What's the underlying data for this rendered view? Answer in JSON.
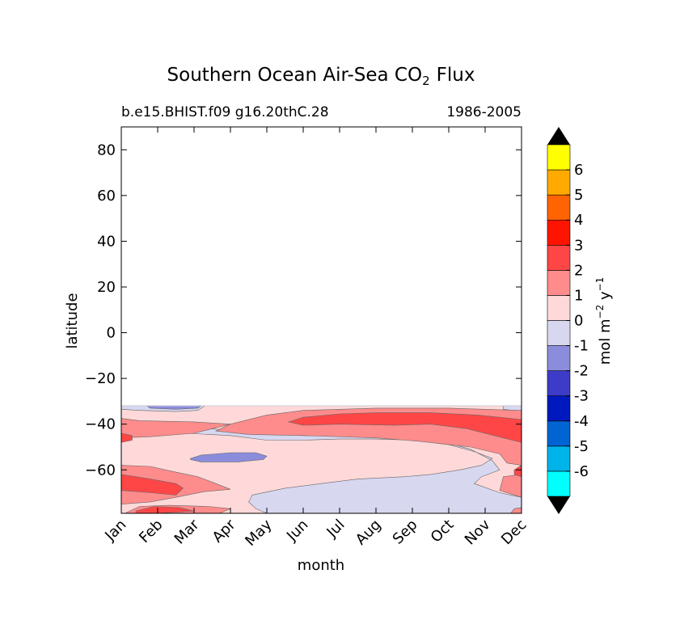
{
  "chart_data": {
    "type": "contourf",
    "title_prefix": "Southern Ocean Air-Sea CO",
    "title_subscript": "2",
    "title_suffix": "Flux",
    "subtitle_left": "b.e15.BHIST.f09 g16.20thC.28",
    "subtitle_right": "1986-2005",
    "xlabel": "month",
    "ylabel": "latitude",
    "x_ticks": [
      "Jan",
      "Feb",
      "Mar",
      "Apr",
      "May",
      "Jun",
      "Jul",
      "Aug",
      "Sep",
      "Oct",
      "Nov",
      "Dec"
    ],
    "y_ticks": [
      80,
      60,
      40,
      20,
      0,
      -20,
      -40,
      -60
    ],
    "y_tick_labels": [
      "80",
      "60",
      "40",
      "20",
      "0",
      "−20",
      "−40",
      "−60"
    ],
    "xlim": [
      0,
      11
    ],
    "ylim": [
      -79,
      90
    ],
    "data_lat_max": -32,
    "colorbar": {
      "label_prefix": "mol m",
      "label_exp1": "−2",
      "label_mid": " y",
      "label_exp2": "−1",
      "levels": [
        -7,
        -6,
        -5,
        -4,
        -3,
        -2,
        -1,
        0,
        1,
        2,
        3,
        4,
        5,
        6,
        7
      ],
      "tick_values": [
        -6,
        -5,
        -4,
        -3,
        -2,
        -1,
        0,
        1,
        2,
        3,
        4,
        5,
        6
      ],
      "tick_labels": [
        "-6",
        "-5",
        "-4",
        "-3",
        "-2",
        "-1",
        "0",
        "1",
        "2",
        "3",
        "4",
        "5",
        "6"
      ],
      "colors": [
        "#00ffff",
        "#00b4ea",
        "#0064d2",
        "#0019be",
        "#3c3cc8",
        "#8c8cdc",
        "#d7d7f0",
        "#ffd9d9",
        "#ff8c8c",
        "#ff4646",
        "#ff1400",
        "#ff6400",
        "#ffaa00",
        "#ffff00"
      ],
      "extend_color": "#000000"
    },
    "regions": [
      {
        "name": "band-positive-0-1",
        "level": 0.5,
        "points": [
          [
            0,
            -32
          ],
          [
            11,
            -32
          ],
          [
            11,
            -79
          ],
          [
            0,
            -79
          ]
        ]
      },
      {
        "name": "band-negative-0-1-south",
        "level": -0.5,
        "points": [
          [
            0.7,
            -45.5
          ],
          [
            1.8,
            -44
          ],
          [
            3,
            -45
          ],
          [
            4,
            -47
          ],
          [
            5,
            -47
          ],
          [
            6,
            -46.5
          ],
          [
            7,
            -46.5
          ],
          [
            8,
            -47
          ],
          [
            9,
            -49
          ],
          [
            9.7,
            -52
          ],
          [
            10.2,
            -55
          ],
          [
            9.9,
            -58
          ],
          [
            9.3,
            -60
          ],
          [
            8.5,
            -62
          ],
          [
            7.8,
            -63
          ],
          [
            6.5,
            -64
          ],
          [
            5.5,
            -66
          ],
          [
            4.5,
            -68
          ],
          [
            3.6,
            -71
          ],
          [
            3.5,
            -74
          ],
          [
            3.7,
            -77
          ],
          [
            4,
            -79
          ],
          [
            11,
            -79
          ],
          [
            11,
            -72
          ],
          [
            10.4,
            -70
          ],
          [
            9.7,
            -66
          ],
          [
            9.9,
            -63
          ],
          [
            10.4,
            -60
          ],
          [
            10.2,
            -56
          ],
          [
            9.6,
            -51
          ],
          [
            8.7,
            -47
          ],
          [
            7,
            -45
          ],
          [
            5,
            -45
          ],
          [
            3.3,
            -43
          ],
          [
            2,
            -41.5
          ],
          [
            0.8,
            -42
          ],
          [
            0,
            -44
          ],
          [
            0,
            -45.5
          ]
        ]
      },
      {
        "name": "band-negative-0-1-north",
        "level": -0.5,
        "points": [
          [
            0,
            -32
          ],
          [
            2.3,
            -32
          ],
          [
            2.1,
            -34
          ],
          [
            1.5,
            -34.5
          ],
          [
            0.5,
            -34
          ],
          [
            0,
            -33.5
          ]
        ]
      },
      {
        "name": "band-negative-0-1-east",
        "level": -0.5,
        "points": [
          [
            10.5,
            -32
          ],
          [
            11,
            -32
          ],
          [
            11,
            -34.5
          ],
          [
            10.5,
            -33.5
          ]
        ]
      },
      {
        "name": "band-negative-1-2",
        "level": -1.5,
        "points": [
          [
            0.7,
            -32
          ],
          [
            2.2,
            -32
          ],
          [
            2.1,
            -33
          ],
          [
            1.5,
            -33.5
          ],
          [
            0.8,
            -33
          ]
        ]
      },
      {
        "name": "band-negative-1-2-apr",
        "level": -1.5,
        "points": [
          [
            1.9,
            -55
          ],
          [
            2.2,
            -53.5
          ],
          [
            3,
            -52.5
          ],
          [
            3.7,
            -52.5
          ],
          [
            4,
            -54
          ],
          [
            3.9,
            -55.5
          ],
          [
            3.2,
            -56.5
          ],
          [
            2.2,
            -56.5
          ],
          [
            1.9,
            -55.5
          ]
        ]
      },
      {
        "name": "band-positive-1-2-west",
        "level": 1.5,
        "points": [
          [
            0,
            -37.5
          ],
          [
            0.5,
            -38.5
          ],
          [
            2,
            -39
          ],
          [
            3,
            -40
          ],
          [
            2,
            -44
          ],
          [
            0.8,
            -45.5
          ],
          [
            0,
            -46
          ]
        ]
      },
      {
        "name": "band-positive-1-2-south",
        "level": 1.5,
        "points": [
          [
            0,
            -58
          ],
          [
            0.8,
            -58.5
          ],
          [
            1.5,
            -61
          ],
          [
            2.1,
            -63
          ],
          [
            2.6,
            -66
          ],
          [
            3,
            -68.5
          ],
          [
            2.3,
            -69.5
          ],
          [
            1.5,
            -72
          ],
          [
            0.8,
            -74
          ],
          [
            0,
            -75
          ]
        ]
      },
      {
        "name": "band-positive-1-2-bottom",
        "level": 1.5,
        "points": [
          [
            0.1,
            -79
          ],
          [
            0.5,
            -76
          ],
          [
            1.3,
            -75.5
          ],
          [
            2.4,
            -76
          ],
          [
            3,
            -77
          ],
          [
            2.7,
            -79
          ]
        ]
      },
      {
        "name": "band-positive-1-2-main",
        "level": 1.5,
        "points": [
          [
            2.6,
            -43
          ],
          [
            3,
            -40
          ],
          [
            4,
            -36
          ],
          [
            5,
            -34
          ],
          [
            7,
            -33
          ],
          [
            9,
            -33
          ],
          [
            11,
            -34
          ],
          [
            11,
            -58
          ],
          [
            10.6,
            -57
          ],
          [
            10.4,
            -53
          ],
          [
            9.6,
            -50
          ],
          [
            8.2,
            -47.5
          ],
          [
            7,
            -46
          ],
          [
            5,
            -45
          ],
          [
            3.5,
            -44.5
          ]
        ]
      },
      {
        "name": "band-positive-1-2-dec-south",
        "level": 1.5,
        "points": [
          [
            10.5,
            -63
          ],
          [
            11,
            -62
          ],
          [
            11,
            -72
          ],
          [
            10.4,
            -69
          ]
        ]
      },
      {
        "name": "band-positive-1-2-dec-bottom",
        "level": 1.5,
        "points": [
          [
            10.7,
            -79
          ],
          [
            10.8,
            -77
          ],
          [
            11,
            -76.5
          ],
          [
            11,
            -79
          ]
        ]
      },
      {
        "name": "band-positive-2-3-west",
        "level": 2.5,
        "points": [
          [
            0,
            -44
          ],
          [
            0.3,
            -45
          ],
          [
            0.3,
            -47
          ],
          [
            0,
            -48
          ]
        ]
      },
      {
        "name": "band-positive-2-3-south",
        "level": 2.5,
        "points": [
          [
            0,
            -62
          ],
          [
            0.8,
            -64
          ],
          [
            1.5,
            -66
          ],
          [
            1.7,
            -68
          ],
          [
            1.5,
            -71
          ],
          [
            0.8,
            -70
          ],
          [
            0,
            -69
          ]
        ]
      },
      {
        "name": "band-positive-2-3-bottom",
        "level": 2.5,
        "points": [
          [
            0.4,
            -78
          ],
          [
            0.9,
            -76
          ],
          [
            1.6,
            -76.5
          ],
          [
            2,
            -78
          ],
          [
            1,
            -79
          ],
          [
            0.4,
            -79
          ]
        ]
      },
      {
        "name": "band-positive-2-3-main",
        "level": 2.5,
        "points": [
          [
            4.6,
            -39
          ],
          [
            5,
            -37
          ],
          [
            6,
            -35.5
          ],
          [
            7,
            -35
          ],
          [
            8.5,
            -35
          ],
          [
            9.8,
            -36
          ],
          [
            11,
            -38
          ],
          [
            11,
            -48
          ],
          [
            10.5,
            -46
          ],
          [
            9.5,
            -42
          ],
          [
            8.5,
            -40
          ],
          [
            7.5,
            -40.5
          ],
          [
            6,
            -40
          ],
          [
            5,
            -40.5
          ]
        ]
      },
      {
        "name": "band-positive-2-3-dec",
        "level": 2.5,
        "points": [
          [
            10.8,
            -60
          ],
          [
            11,
            -58
          ],
          [
            11,
            -63
          ],
          [
            10.8,
            -62
          ]
        ]
      }
    ]
  }
}
